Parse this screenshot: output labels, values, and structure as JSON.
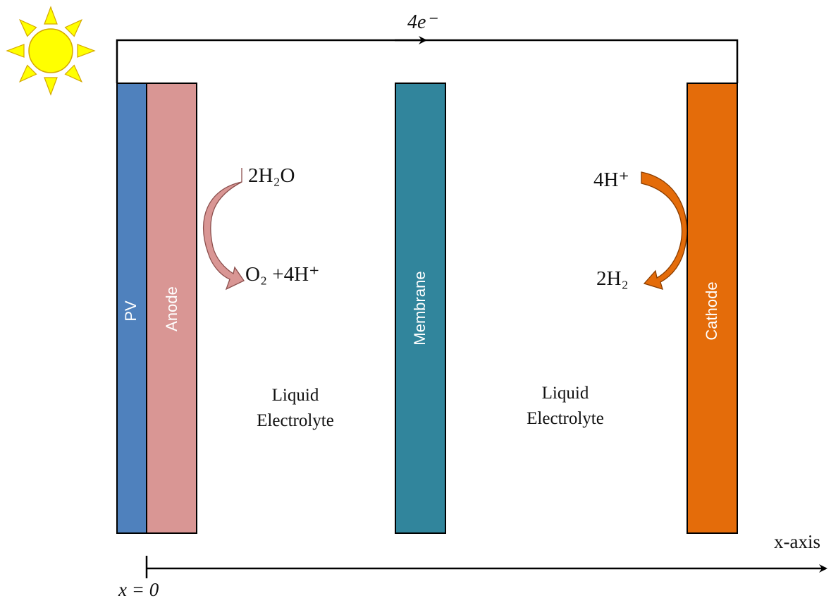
{
  "electron_label": "4e⁻",
  "layers": {
    "pv": {
      "label": "PV",
      "color": "#4f81bd"
    },
    "anode": {
      "label": "Anode",
      "color": "#d99694"
    },
    "membrane": {
      "label": "Membrane",
      "color": "#31859c"
    },
    "cathode": {
      "label": "Cathode",
      "color": "#e46c0a"
    }
  },
  "anode_reaction": {
    "reactant": "2H₂O",
    "product": "O₂ +4H⁺",
    "arrow_color": "#d99694"
  },
  "cathode_reaction": {
    "reactant": "4H⁺",
    "product": "2H₂",
    "arrow_color": "#e46c0a"
  },
  "electrolyte_left": {
    "line1": "Liquid",
    "line2": "Electrolyte"
  },
  "electrolyte_right": {
    "line1": "Liquid",
    "line2": "Electrolyte"
  },
  "axis": {
    "label": "x-axis",
    "origin_label": "x = 0"
  },
  "sun_color": "#ffff00"
}
